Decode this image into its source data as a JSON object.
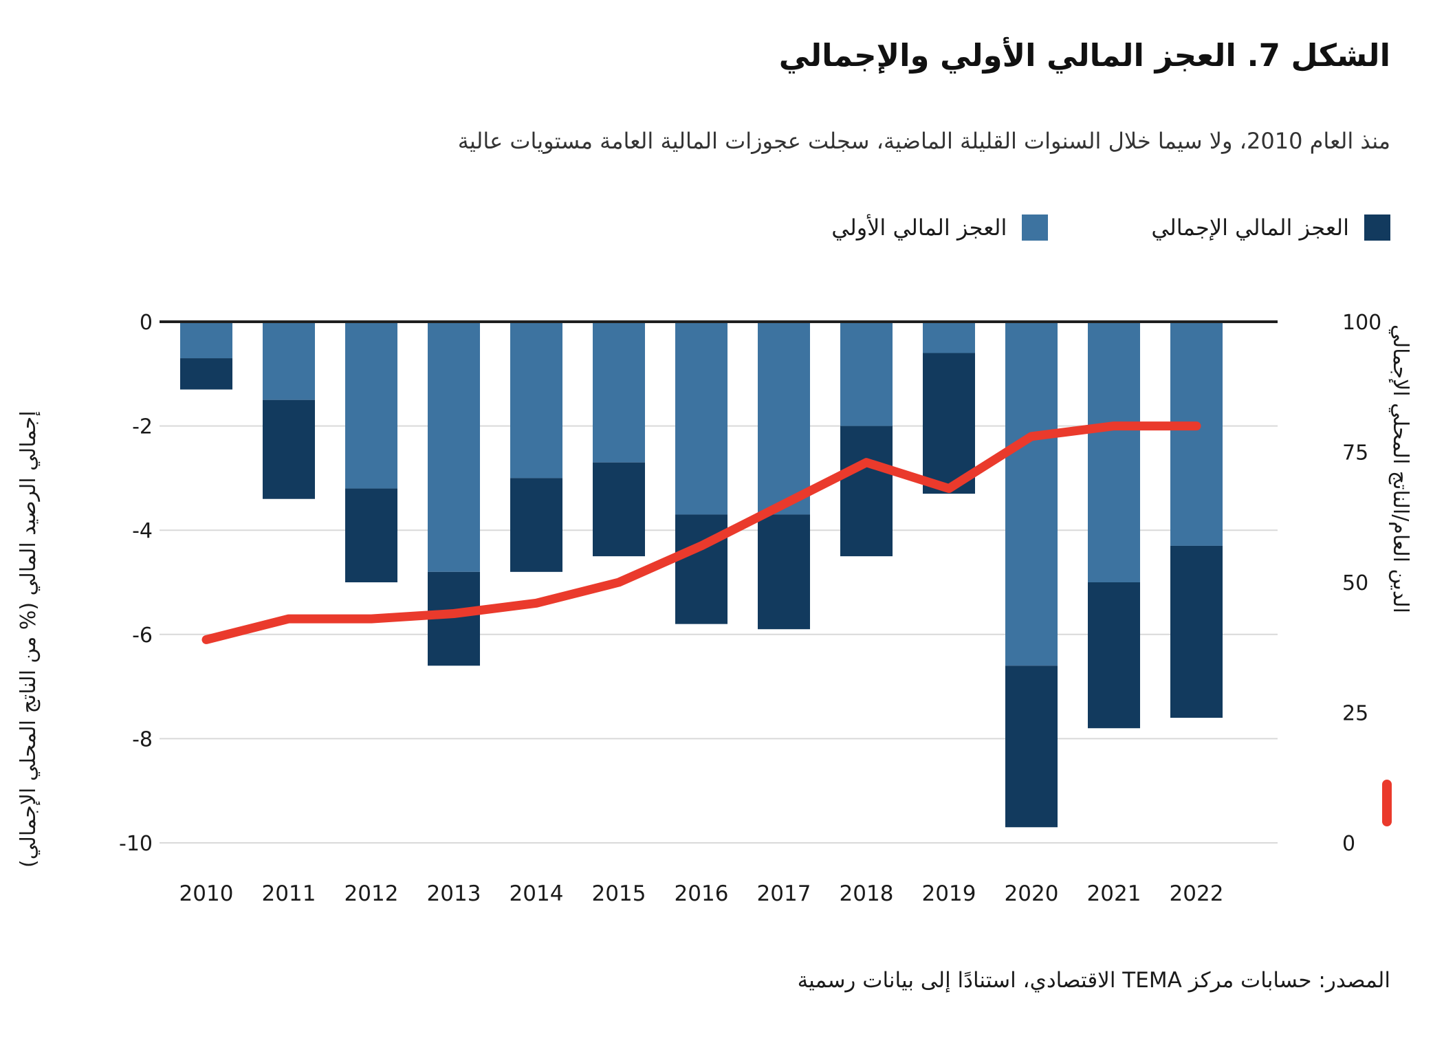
{
  "figure": {
    "title": "الشكل 7. العجز المالي الأولي والإجمالي",
    "subtitle": "منذ العام 2010، ولا سيما خلال السنوات القليلة الماضية، سجلت عجوزات المالية العامة مستويات عالية",
    "source": "المصدر: حسابات مركز TEMA الاقتصادي، استنادًا إلى بيانات رسمية"
  },
  "legend": {
    "overall_label": "العجز المالي الإجمالي",
    "primary_label": "العجز المالي الأولي"
  },
  "colors": {
    "primary_bar": "#3d73a0",
    "overall_bar": "#123a5e",
    "debt_line": "#ea3a2c",
    "grid": "#d9d9d9",
    "zero_axis": "#1f1f1f",
    "text": "#1a1a1a"
  },
  "chart_data": {
    "type": "bar",
    "subtype": "stacked-bars-with-line",
    "categories": [
      "2010",
      "2011",
      "2012",
      "2013",
      "2014",
      "2015",
      "2016",
      "2017",
      "2018",
      "2019",
      "2020",
      "2021",
      "2022"
    ],
    "series": [
      {
        "name": "العجز المالي الأولي",
        "type": "bar",
        "axis": "left",
        "values": [
          -0.7,
          -1.5,
          -3.2,
          -4.8,
          -3.0,
          -2.7,
          -3.7,
          -3.7,
          -2.0,
          -0.6,
          -6.6,
          -5.0,
          -4.3
        ]
      },
      {
        "name": "العجز المالي الإجمالي",
        "type": "bar-total",
        "axis": "left",
        "values": [
          -1.3,
          -3.4,
          -5.0,
          -6.6,
          -4.8,
          -4.5,
          -5.8,
          -5.9,
          -4.5,
          -3.3,
          -9.7,
          -7.8,
          -7.6
        ]
      },
      {
        "name": "الدين العام/الناتج المحلي الإجمالي",
        "type": "line",
        "axis": "right",
        "values": [
          39,
          43,
          43,
          44,
          46,
          50,
          57,
          65,
          73,
          68,
          78,
          80,
          80
        ]
      }
    ],
    "left_axis": {
      "label": "إجمالي الرصيد المالي (% من الناتج المحلي الإجمالي)",
      "ticks": [
        0,
        -2,
        -4,
        -6,
        -8,
        -10
      ],
      "range": [
        0,
        -10
      ]
    },
    "right_axis": {
      "label": "الدين العام/الناتج المحلي الإجمالي",
      "ticks": [
        100,
        75,
        50,
        25,
        0
      ],
      "range": [
        0,
        100
      ]
    },
    "grid": true,
    "legend_position": "top-right"
  }
}
